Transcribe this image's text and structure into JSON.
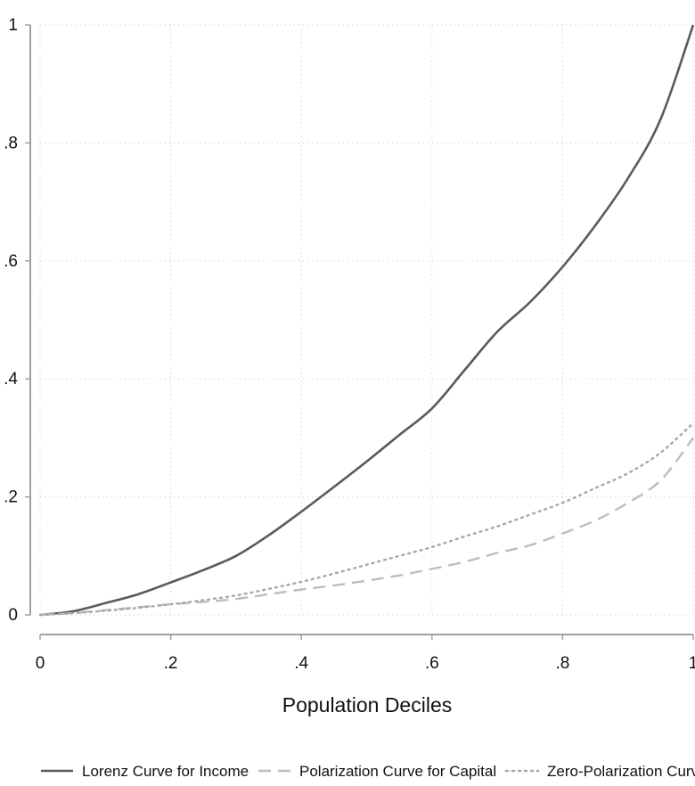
{
  "chart_data": {
    "type": "line",
    "title": "",
    "xlabel": "Population Deciles",
    "ylabel": "",
    "xlim": [
      0,
      1
    ],
    "ylim": [
      0,
      1
    ],
    "grid": true,
    "legend_position": "bottom",
    "x_ticks": [
      {
        "value": 0,
        "label": "0"
      },
      {
        "value": 0.2,
        "label": ".2"
      },
      {
        "value": 0.4,
        "label": ".4"
      },
      {
        "value": 0.6,
        "label": ".6"
      },
      {
        "value": 0.8,
        "label": ".8"
      },
      {
        "value": 1,
        "label": "1"
      }
    ],
    "y_ticks": [
      {
        "value": 0,
        "label": "0"
      },
      {
        "value": 0.2,
        "label": ".2"
      },
      {
        "value": 0.4,
        "label": ".4"
      },
      {
        "value": 0.6,
        "label": ".6"
      },
      {
        "value": 0.8,
        "label": ".8"
      },
      {
        "value": 1,
        "label": "1"
      }
    ],
    "series": [
      {
        "name": "Lorenz Curve for Income",
        "style": "solid",
        "color": "#5a5a5a",
        "x": [
          0,
          0.05,
          0.1,
          0.15,
          0.2,
          0.25,
          0.3,
          0.35,
          0.4,
          0.45,
          0.5,
          0.55,
          0.6,
          0.65,
          0.7,
          0.75,
          0.8,
          0.85,
          0.9,
          0.95,
          1.0
        ],
        "y": [
          0,
          0.006,
          0.02,
          0.035,
          0.055,
          0.076,
          0.1,
          0.135,
          0.175,
          0.217,
          0.26,
          0.305,
          0.35,
          0.415,
          0.48,
          0.53,
          0.59,
          0.66,
          0.74,
          0.84,
          1.0
        ]
      },
      {
        "name": "Polarization Curve for Capital",
        "style": "dashed",
        "color": "#bdbdbd",
        "x": [
          0,
          0.05,
          0.1,
          0.15,
          0.2,
          0.25,
          0.3,
          0.35,
          0.4,
          0.45,
          0.5,
          0.55,
          0.6,
          0.65,
          0.7,
          0.75,
          0.8,
          0.85,
          0.9,
          0.95,
          1.0
        ],
        "y": [
          0,
          0.003,
          0.008,
          0.013,
          0.018,
          0.022,
          0.027,
          0.035,
          0.043,
          0.05,
          0.058,
          0.067,
          0.078,
          0.09,
          0.105,
          0.118,
          0.138,
          0.16,
          0.19,
          0.228,
          0.3
        ]
      },
      {
        "name": "Zero-Polarization Curve",
        "style": "dotted",
        "color": "#a8a8a8",
        "x": [
          0,
          0.05,
          0.1,
          0.15,
          0.2,
          0.25,
          0.3,
          0.35,
          0.4,
          0.45,
          0.5,
          0.55,
          0.6,
          0.65,
          0.7,
          0.75,
          0.8,
          0.85,
          0.9,
          0.95,
          1.0
        ],
        "y": [
          0,
          0.003,
          0.007,
          0.012,
          0.018,
          0.025,
          0.033,
          0.044,
          0.056,
          0.07,
          0.085,
          0.1,
          0.115,
          0.133,
          0.15,
          0.17,
          0.19,
          0.215,
          0.24,
          0.275,
          0.325
        ]
      }
    ]
  }
}
